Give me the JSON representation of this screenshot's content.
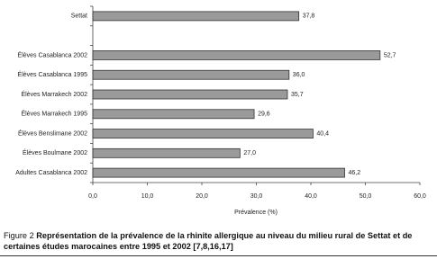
{
  "chart_data": {
    "type": "hbar",
    "categories": [
      "Settat",
      null,
      "Élèves Casablanca 2002",
      "Élèves Casablanca 1995",
      "Élèves Marrakech 2002",
      "Élèves Marrakech 1995",
      "Élèves Benslimane 2002",
      "Élèves Boulmane 2002",
      "Adultes Casablanca 2002"
    ],
    "values": [
      37.8,
      null,
      52.7,
      36.0,
      35.7,
      29.6,
      40.4,
      27.0,
      46.2
    ],
    "value_labels": [
      "37,8",
      null,
      "52,7",
      "36,0",
      "35,7",
      "29,6",
      "40,4",
      "27,0",
      "46,2"
    ],
    "color": "#9a9a9a",
    "xlabel": "Prévalence (%)",
    "xlim": [
      0,
      60
    ],
    "xticks": [
      {
        "value": 0,
        "label": "0,0"
      },
      {
        "value": 10,
        "label": "10,0"
      },
      {
        "value": 20,
        "label": "20,0"
      },
      {
        "value": 30,
        "label": "30,0"
      },
      {
        "value": 40,
        "label": "40,0"
      },
      {
        "value": 50,
        "label": "50,0"
      },
      {
        "value": 60,
        "label": "60,0"
      }
    ],
    "grid": false
  },
  "caption": {
    "label": "Figure 2",
    "text": "Représentation de la prévalence de la rhinite allergique au niveau du milieu rural de Settat et de certaines études marocaines entre 1995 et 2002 [7,8,16,17]"
  }
}
